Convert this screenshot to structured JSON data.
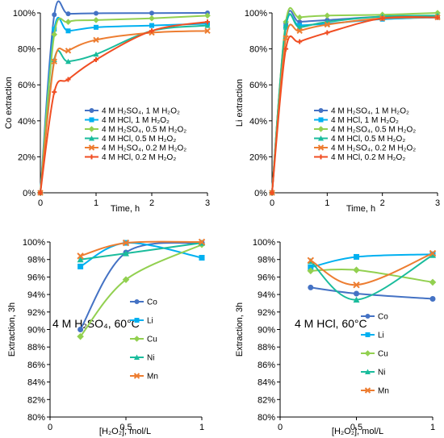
{
  "chart_data": [
    {
      "type": "line",
      "ylabel": "Co extraction",
      "xlabel": "Time, h",
      "xlim": [
        0,
        3
      ],
      "ylim": [
        0,
        1
      ],
      "x_ticks": [
        "0",
        "1",
        "2",
        "3"
      ],
      "y_ticks": [
        "0%",
        "20%",
        "40%",
        "60%",
        "80%",
        "100%"
      ],
      "legend_position": "bottom-right",
      "grid": false,
      "series": [
        {
          "name": "4 M H₂SO₄, 1 M H₂O₂",
          "color": "#4472C4",
          "marker": "circle",
          "x": [
            0,
            0.25,
            0.5,
            1,
            2,
            3
          ],
          "y": [
            0.0,
            0.99,
            0.995,
            0.998,
            0.999,
            1.0
          ]
        },
        {
          "name": "4 M HCl, 1 M H₂O₂",
          "color": "#00B0F0",
          "marker": "square",
          "x": [
            0,
            0.25,
            0.5,
            1,
            2,
            3
          ],
          "y": [
            0.0,
            0.91,
            0.9,
            0.92,
            0.93,
            0.94
          ]
        },
        {
          "name": "4 M H₂SO₄, 0.5 M H₂O₂",
          "color": "#92D050",
          "marker": "diamond",
          "x": [
            0,
            0.25,
            0.5,
            1,
            2,
            3
          ],
          "y": [
            0.0,
            0.88,
            0.95,
            0.96,
            0.97,
            0.985
          ]
        },
        {
          "name": "4 M HCl, 0.5 M H₂O₂",
          "color": "#1ABC9C",
          "marker": "triangle",
          "x": [
            0,
            0.25,
            0.5,
            1,
            2,
            3
          ],
          "y": [
            0.0,
            0.74,
            0.73,
            0.77,
            0.9,
            0.93
          ]
        },
        {
          "name": "4 M H₂SO₄, 0.2 M H₂O₂",
          "color": "#ED7D31",
          "marker": "x",
          "x": [
            0,
            0.25,
            0.5,
            1,
            2,
            3
          ],
          "y": [
            0.0,
            0.73,
            0.79,
            0.85,
            0.89,
            0.9
          ]
        },
        {
          "name": "4 M HCl, 0.2 M H₂O₂",
          "color": "#F04E23",
          "marker": "plus",
          "x": [
            0,
            0.25,
            0.5,
            1,
            2,
            3
          ],
          "y": [
            0.0,
            0.56,
            0.63,
            0.74,
            0.9,
            0.95
          ]
        }
      ]
    },
    {
      "type": "line",
      "ylabel": "Li extraction",
      "xlabel": "Time, h",
      "xlim": [
        0,
        3
      ],
      "ylim": [
        0,
        1
      ],
      "x_ticks": [
        "0",
        "1",
        "2",
        "3"
      ],
      "y_ticks": [
        "0%",
        "20%",
        "40%",
        "60%",
        "80%",
        "100%"
      ],
      "legend_position": "bottom-right",
      "grid": false,
      "series": [
        {
          "name": "4 M H₂SO₄, 1 M H₂O₂",
          "color": "#4472C4",
          "marker": "circle",
          "x": [
            0,
            0.25,
            0.5,
            1,
            2,
            3
          ],
          "y": [
            0.0,
            0.94,
            0.95,
            0.96,
            0.98,
            0.985
          ]
        },
        {
          "name": "4 M HCl, 1 M H₂O₂",
          "color": "#00B0F0",
          "marker": "square",
          "x": [
            0,
            0.25,
            0.5,
            1,
            2,
            3
          ],
          "y": [
            0.0,
            0.92,
            0.93,
            0.94,
            0.965,
            0.975
          ]
        },
        {
          "name": "4 M H₂SO₄, 0.5 M H₂O₂",
          "color": "#92D050",
          "marker": "diamond",
          "x": [
            0,
            0.25,
            0.5,
            1,
            2,
            3
          ],
          "y": [
            0.0,
            0.95,
            0.975,
            0.985,
            0.99,
            1.0
          ]
        },
        {
          "name": "4 M HCl, 0.5 M H₂O₂",
          "color": "#1ABC9C",
          "marker": "triangle",
          "x": [
            0,
            0.25,
            0.5,
            1,
            2,
            3
          ],
          "y": [
            0.0,
            0.93,
            0.92,
            0.95,
            0.98,
            0.985
          ]
        },
        {
          "name": "4 M H₂SO₄, 0.2 M H₂O₂",
          "color": "#ED7D31",
          "marker": "x",
          "x": [
            0,
            0.25,
            0.5,
            1,
            2,
            3
          ],
          "y": [
            0.0,
            0.86,
            0.9,
            0.935,
            0.97,
            0.975
          ]
        },
        {
          "name": "4 M HCl, 0.2 M H₂O₂",
          "color": "#F04E23",
          "marker": "plus",
          "x": [
            0,
            0.25,
            0.5,
            1,
            2,
            3
          ],
          "y": [
            0.0,
            0.8,
            0.84,
            0.89,
            0.97,
            0.975
          ]
        }
      ]
    },
    {
      "type": "line",
      "ylabel": "Extraction, 3h",
      "xlabel": "[H₂O₂], mol/L",
      "annotation": "4 M H₂SO₄, 60°C",
      "xlim": [
        0,
        1
      ],
      "ylim": [
        0.8,
        1.0
      ],
      "x_ticks": [
        "0",
        "0.5",
        "1"
      ],
      "y_ticks": [
        "80%",
        "82%",
        "84%",
        "86%",
        "88%",
        "90%",
        "92%",
        "94%",
        "96%",
        "98%",
        "100%"
      ],
      "legend_position": "right",
      "grid": false,
      "series": [
        {
          "name": "Co",
          "color": "#4472C4",
          "marker": "circle",
          "x": [
            0.2,
            0.5,
            1
          ],
          "y": [
            0.9,
            0.988,
            0.999
          ]
        },
        {
          "name": "Li",
          "color": "#00B0F0",
          "marker": "square",
          "x": [
            0.2,
            0.5,
            1
          ],
          "y": [
            0.972,
            0.999,
            0.982
          ]
        },
        {
          "name": "Cu",
          "color": "#92D050",
          "marker": "diamond",
          "x": [
            0.2,
            0.5,
            1
          ],
          "y": [
            0.892,
            0.957,
            0.997
          ]
        },
        {
          "name": "Ni",
          "color": "#1ABC9C",
          "marker": "triangle",
          "x": [
            0.2,
            0.5,
            1
          ],
          "y": [
            0.98,
            0.987,
            0.999
          ]
        },
        {
          "name": "Mn",
          "color": "#ED7D31",
          "marker": "x",
          "x": [
            0.2,
            0.5,
            1
          ],
          "y": [
            0.984,
            0.999,
            1.0
          ]
        }
      ]
    },
    {
      "type": "line",
      "ylabel": "Extraction, 3h",
      "xlabel": "[H₂O₂], mol/L",
      "annotation": "4 M HCl, 60°C",
      "xlim": [
        0,
        1
      ],
      "ylim": [
        0.8,
        1.0
      ],
      "x_ticks": [
        "0",
        "0.5",
        "1"
      ],
      "y_ticks": [
        "80%",
        "82%",
        "84%",
        "86%",
        "88%",
        "90%",
        "92%",
        "94%",
        "96%",
        "98%",
        "100%"
      ],
      "legend_position": "right",
      "grid": false,
      "series": [
        {
          "name": "Co",
          "color": "#4472C4",
          "marker": "circle",
          "x": [
            0.2,
            0.5,
            1
          ],
          "y": [
            0.948,
            0.941,
            0.935
          ]
        },
        {
          "name": "Li",
          "color": "#00B0F0",
          "marker": "square",
          "x": [
            0.2,
            0.5,
            1
          ],
          "y": [
            0.971,
            0.983,
            0.986
          ]
        },
        {
          "name": "Cu",
          "color": "#92D050",
          "marker": "diamond",
          "x": [
            0.2,
            0.5,
            1
          ],
          "y": [
            0.967,
            0.968,
            0.954
          ]
        },
        {
          "name": "Ni",
          "color": "#1ABC9C",
          "marker": "triangle",
          "x": [
            0.2,
            0.5,
            1
          ],
          "y": [
            0.978,
            0.934,
            0.985
          ]
        },
        {
          "name": "Mn",
          "color": "#ED7D31",
          "marker": "x",
          "x": [
            0.2,
            0.5,
            1
          ],
          "y": [
            0.979,
            0.951,
            0.987
          ]
        }
      ]
    }
  ]
}
